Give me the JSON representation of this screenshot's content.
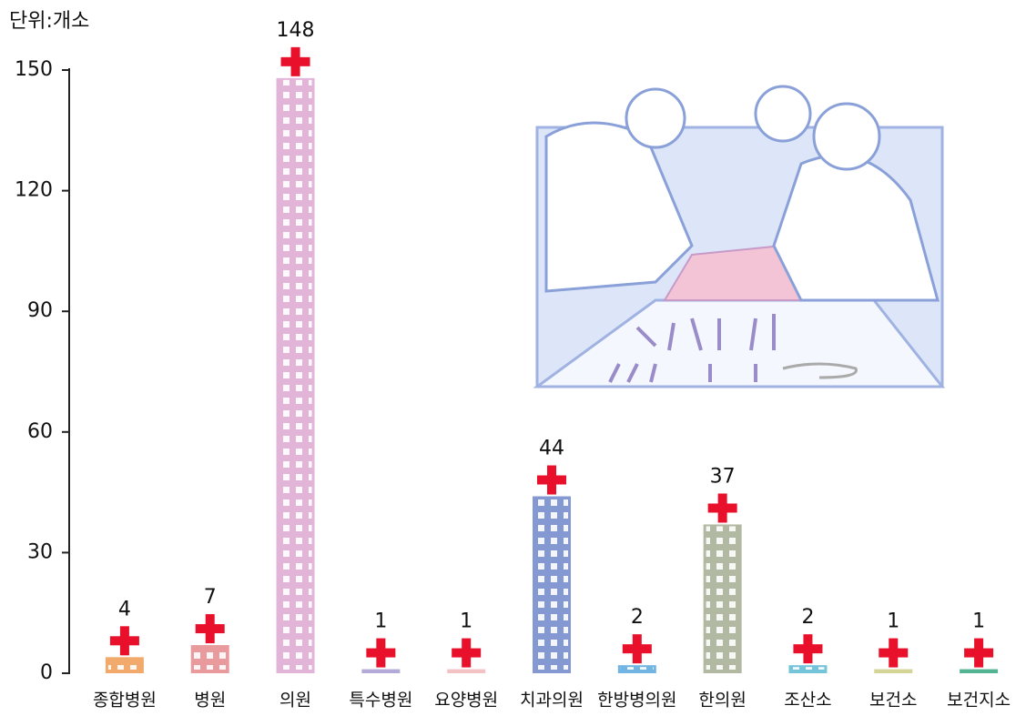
{
  "chart_data": {
    "type": "bar",
    "unit_label": "단위:개소",
    "categories": [
      "종합병원",
      "병원",
      "의원",
      "특수병원",
      "요양병원",
      "치과의원",
      "한방병의원",
      "한의원",
      "조산소",
      "보건소",
      "보건지소"
    ],
    "series": [
      {
        "name": "개소",
        "values": [
          4,
          7,
          148,
          1,
          1,
          44,
          2,
          37,
          2,
          1,
          1
        ],
        "colors": [
          "#f2aa6c",
          "#e89a9c",
          "#e2b4d8",
          "#b4aad8",
          "#f2c2c4",
          "#8499d2",
          "#72b4e2",
          "#b2b9a2",
          "#74c4da",
          "#d4d496",
          "#52b492"
        ]
      }
    ],
    "ylim": [
      0,
      150
    ],
    "yticks": [
      0,
      30,
      60,
      90,
      120,
      150
    ]
  }
}
